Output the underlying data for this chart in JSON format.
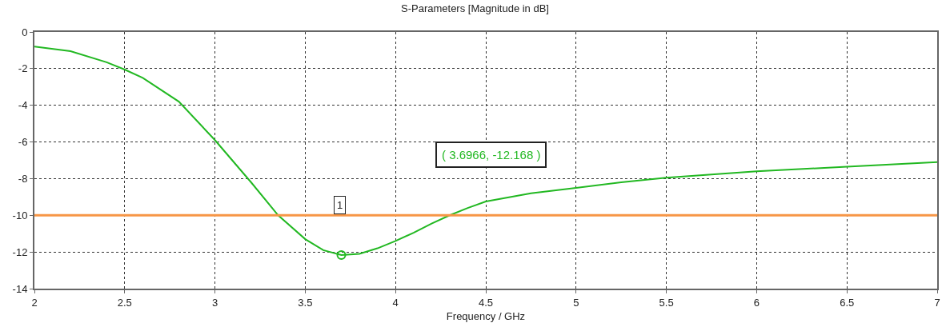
{
  "chart_data": {
    "type": "line",
    "title": "S-Parameters [Magnitude in dB]",
    "xlabel": "Frequency / GHz",
    "x": [
      2.0,
      2.2,
      2.4,
      2.5,
      2.6,
      2.8,
      3.0,
      3.2,
      3.35,
      3.5,
      3.6,
      3.7,
      3.8,
      3.9,
      4.0,
      4.1,
      4.2,
      4.3,
      4.4,
      4.5,
      4.75,
      5.0,
      5.25,
      5.5,
      6.0,
      6.5,
      7.0
    ],
    "series": [
      {
        "color": "#22b822",
        "values": [
          -0.8,
          -1.05,
          -1.65,
          -2.05,
          -2.5,
          -3.8,
          -5.9,
          -8.2,
          -10.0,
          -11.3,
          -11.9,
          -12.17,
          -12.1,
          -11.8,
          -11.4,
          -10.95,
          -10.45,
          -10.0,
          -9.6,
          -9.25,
          -8.8,
          -8.5,
          -8.2,
          -7.95,
          -7.6,
          -7.35,
          -7.1
        ]
      },
      {
        "type": "scatter",
        "marker": "circle",
        "color": "#22b822",
        "x": [
          3.7
        ],
        "values": [
          -12.17
        ]
      }
    ],
    "annotations": [
      "( 3.6966, -12.168 )",
      "1"
    ],
    "ref_lines": [
      {
        "axis": "y",
        "value": -10,
        "color": "#f79646"
      }
    ],
    "xlim": [
      2,
      7
    ],
    "xticks": [
      2,
      2.5,
      3,
      3.5,
      4,
      4.5,
      5,
      5.5,
      6,
      6.5,
      7
    ],
    "ylim": [
      -14,
      0
    ],
    "yticks": [
      -14,
      -12,
      -10,
      -8,
      -6,
      -4,
      -2,
      0
    ],
    "grid": true,
    "line_style": "solid"
  }
}
